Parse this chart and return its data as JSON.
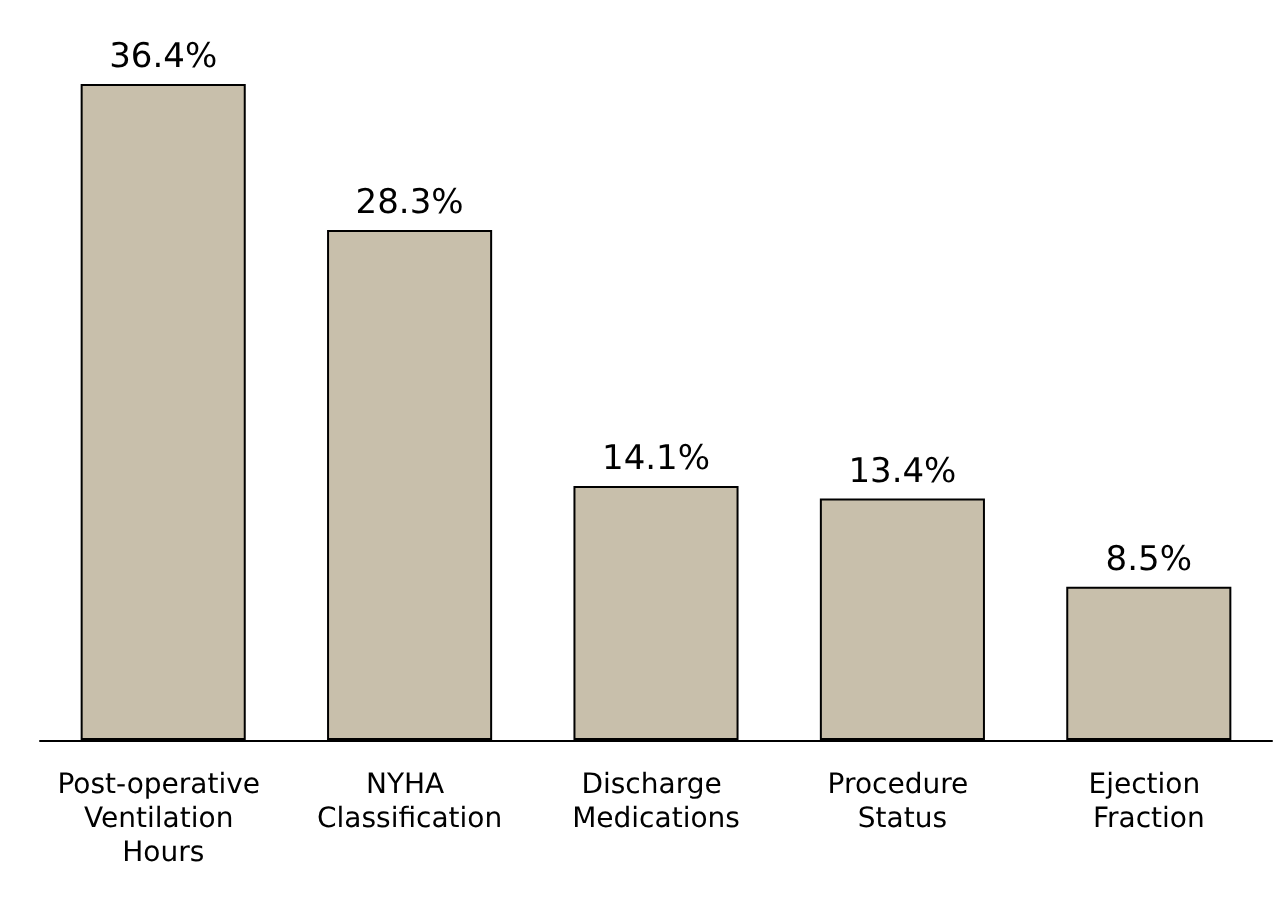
{
  "chart_data": {
    "type": "bar",
    "categories": [
      "Post-operative Ventilation Hours",
      "NYHA Classification",
      "Discharge Medications",
      "Procedure Status",
      "Ejection Fraction"
    ],
    "values": [
      36.4,
      28.3,
      14.1,
      13.4,
      8.5
    ],
    "value_labels": [
      "36.4%",
      "28.3%",
      "14.1%",
      "13.4%",
      "8.5%"
    ],
    "color": "#c8bfab"
  }
}
